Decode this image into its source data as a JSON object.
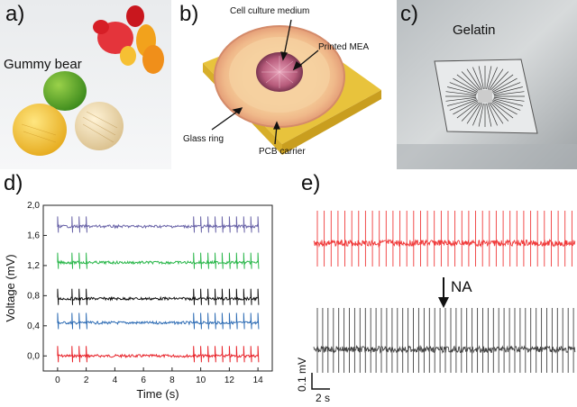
{
  "panel_a": {
    "label": "a)",
    "caption": "Gummy bear"
  },
  "panel_b": {
    "label": "b)",
    "annotations": {
      "medium": "Cell culture medium",
      "mea": "Printed MEA",
      "glass": "Glass ring",
      "pcb": "PCB carrier"
    }
  },
  "panel_c": {
    "label": "c)",
    "caption": "Gelatin"
  },
  "panel_d": {
    "label": "d)"
  },
  "panel_e": {
    "label": "e)",
    "treatment": "NA",
    "scale_v": "0.1 mV",
    "scale_t": "2 s"
  },
  "chart_data": [
    {
      "type": "line",
      "xlabel": "Time (s)",
      "ylabel": "Voltage (mV)",
      "xlim": [
        -1,
        15
      ],
      "ylim": [
        -0.2,
        2.0
      ],
      "xticks": [
        "0",
        "2",
        "4",
        "6",
        "8",
        "10",
        "12",
        "14"
      ],
      "yticks": [
        "0,0",
        "0,4",
        "0,8",
        "1,2",
        "1,6",
        "2,0"
      ],
      "spike_interval_s": 0.5,
      "series": [
        {
          "baseline": 0.0,
          "color": "#e8232a"
        },
        {
          "baseline": 0.44,
          "color": "#2f6db5"
        },
        {
          "baseline": 0.76,
          "color": "#111111"
        },
        {
          "baseline": 1.24,
          "color": "#2db84d"
        },
        {
          "baseline": 1.72,
          "color": "#6a64a8"
        }
      ]
    },
    {
      "type": "line",
      "series": [
        {
          "condition": "before",
          "color": "#f03b3b",
          "spikes": 38
        },
        {
          "condition": "after",
          "color": "#444444",
          "spikes": 49
        }
      ]
    }
  ]
}
